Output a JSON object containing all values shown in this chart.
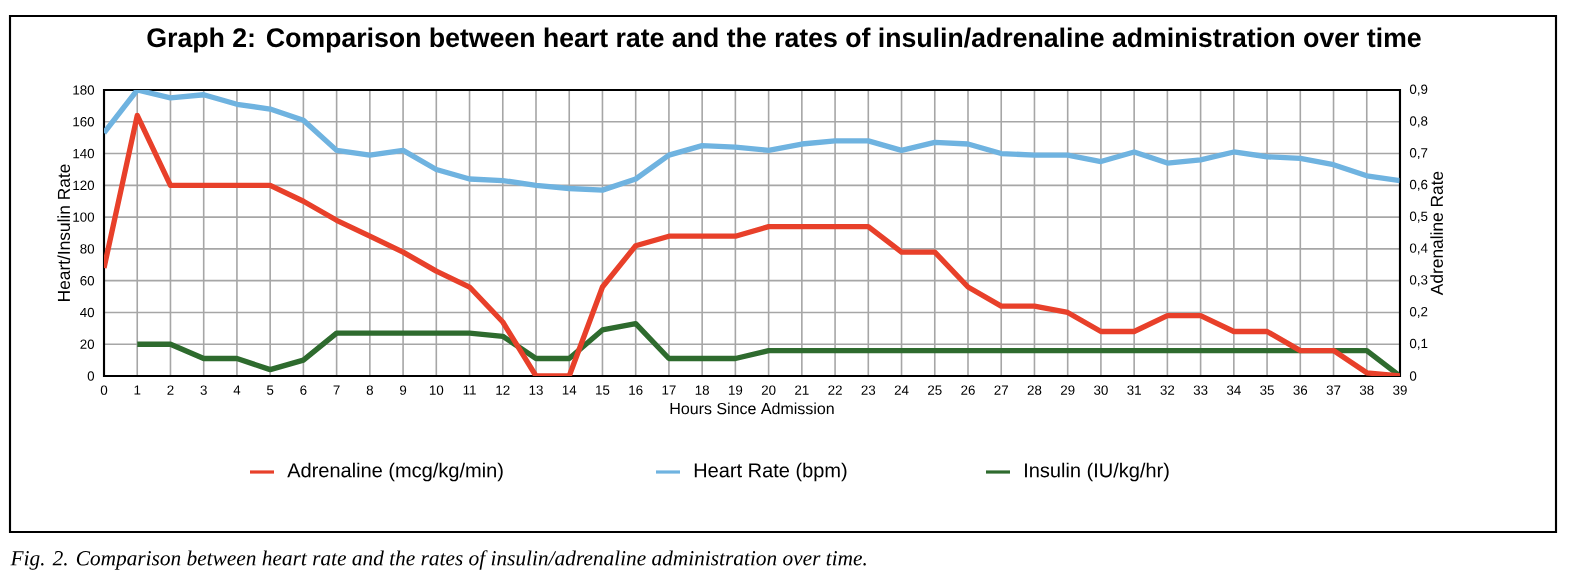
{
  "chart_data": {
    "type": "line",
    "title": "Graph 2: Comparison between heart rate and the rates of insulin/adrenaline administration over time",
    "xlabel": "Hours Since Admission",
    "ylabel": "Heart/Insulin Rate",
    "y2label": "Adrenaline Rate",
    "x": [
      0,
      1,
      2,
      3,
      4,
      5,
      6,
      7,
      8,
      9,
      10,
      11,
      12,
      13,
      14,
      15,
      16,
      17,
      18,
      19,
      20,
      21,
      22,
      23,
      24,
      25,
      26,
      27,
      28,
      29,
      30,
      31,
      32,
      33,
      34,
      35,
      36,
      37,
      38,
      39
    ],
    "series": [
      {
        "name": "Adrenaline (mcg/kg/min)",
        "color": "#e8402a",
        "axis": "y2",
        "values": [
          0.34,
          0.82,
          0.6,
          0.6,
          0.6,
          0.6,
          0.55,
          0.49,
          0.44,
          0.39,
          0.33,
          0.28,
          0.17,
          0,
          0,
          0.28,
          0.41,
          0.44,
          0.44,
          0.44,
          0.47,
          0.47,
          0.47,
          0.47,
          0.39,
          0.39,
          0.28,
          0.22,
          0.22,
          0.2,
          0.14,
          0.14,
          0.19,
          0.19,
          0.14,
          0.14,
          0.08,
          0.08,
          0.01,
          0
        ]
      },
      {
        "name": "Heart Rate (bpm)",
        "color": "#6fb3e0",
        "values": [
          153,
          180,
          175,
          177,
          171,
          168,
          161,
          142,
          139,
          142,
          130,
          124,
          123,
          120,
          118,
          117,
          124,
          139,
          145,
          144,
          142,
          146,
          148,
          148,
          142,
          147,
          146,
          140,
          139,
          139,
          135,
          141,
          134,
          136,
          141,
          138,
          137,
          133,
          126,
          123
        ]
      },
      {
        "name": "Insulin (IU/kg/hr)",
        "color": "#2e6b2e",
        "values": [
          null,
          20,
          20,
          11,
          11,
          4,
          10,
          27,
          27,
          27,
          27,
          27,
          25,
          11,
          11,
          29,
          33,
          11,
          11,
          11,
          16,
          16,
          16,
          16,
          16,
          16,
          16,
          16,
          16,
          16,
          16,
          16,
          16,
          16,
          16,
          16,
          16,
          16,
          16,
          0
        ]
      }
    ],
    "xlim": [
      0,
      39
    ],
    "xticks": [
      0,
      1,
      2,
      3,
      4,
      5,
      6,
      7,
      8,
      9,
      10,
      11,
      12,
      13,
      14,
      15,
      16,
      17,
      18,
      19,
      20,
      21,
      22,
      23,
      24,
      25,
      26,
      27,
      28,
      29,
      30,
      31,
      32,
      33,
      34,
      35,
      36,
      37,
      38,
      39
    ],
    "ylim": [
      0,
      180
    ],
    "yticks": [
      0,
      20,
      40,
      60,
      80,
      100,
      120,
      140,
      160,
      180
    ],
    "y2lim": [
      0,
      0.9
    ],
    "y2ticks": [
      0,
      {
        "value": 0.1,
        "label": "0,1"
      },
      {
        "value": 0.2,
        "label": "0,2"
      },
      {
        "value": 0.3,
        "label": "0,3"
      },
      {
        "value": 0.4,
        "label": "0,4"
      },
      {
        "value": 0.5,
        "label": "0,5"
      },
      {
        "value": 0.6,
        "label": "0,6"
      },
      {
        "value": 0.7,
        "label": "0,7"
      },
      {
        "value": 0.8,
        "label": "0,8"
      },
      {
        "value": 0.9,
        "label": "0,9"
      }
    ],
    "grid": true,
    "legend": "bottom",
    "annotations": [
      "Fig. 2. Comparison between heart rate and the rates of insulin/adrenaline administration over time."
    ]
  }
}
